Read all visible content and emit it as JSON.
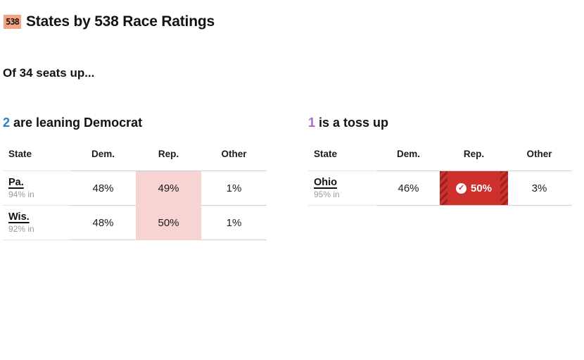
{
  "header": {
    "logo_text": "538",
    "title": "States by 538 Race Ratings"
  },
  "subtitle": "Of 34 seats up...",
  "columns": {
    "state": "State",
    "dem": "Dem.",
    "rep": "Rep.",
    "other": "Other"
  },
  "icons": {
    "called_check": "✓"
  },
  "colors": {
    "dem_blue": "#2e7dbf",
    "tossup_purple": "#a76cc8",
    "rep_pink": "#f7d3d1",
    "rep_red": "#ce302b",
    "rep_stripe": "#9e211c",
    "logo_bg": "#f5a482"
  },
  "sections": [
    {
      "count": "2",
      "heading_rest": " are leaning Democrat",
      "rep_column_highlight": true,
      "rows": [
        {
          "state": "Pa.",
          "reporting": "94% in",
          "dem": "48%",
          "rep": "49%",
          "other": "1%",
          "called": false
        },
        {
          "state": "Wis.",
          "reporting": "92% in",
          "dem": "48%",
          "rep": "50%",
          "other": "1%",
          "called": false
        }
      ]
    },
    {
      "count": "1",
      "heading_rest": " is a toss up",
      "rep_column_highlight": false,
      "rows": [
        {
          "state": "Ohio",
          "reporting": "95% in",
          "dem": "46%",
          "rep": "50%",
          "other": "3%",
          "called": true
        }
      ]
    }
  ]
}
